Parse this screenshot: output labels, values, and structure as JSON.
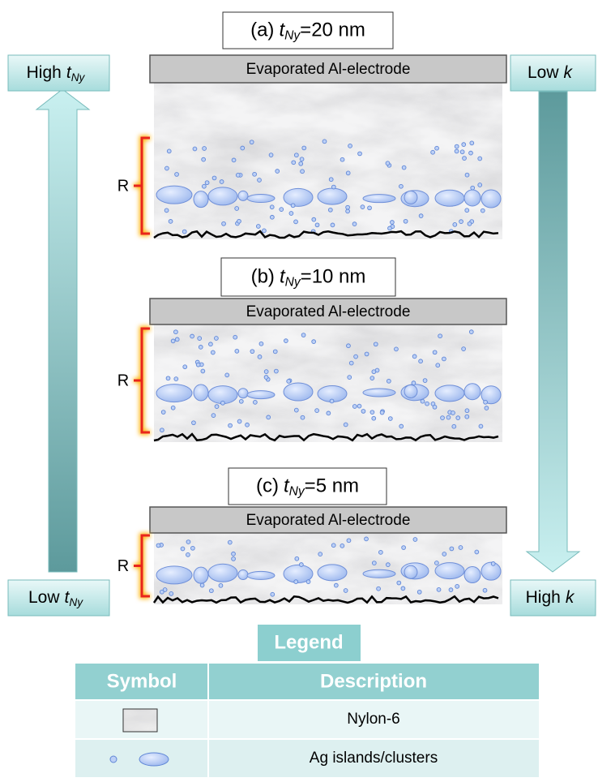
{
  "panels": [
    {
      "label": "(a)",
      "var": "t",
      "sub": "Ny",
      "rest": "=20 nm",
      "electrode": "Evaporated Al-electrode",
      "region": "R"
    },
    {
      "label": "(b)",
      "var": "t",
      "sub": "Ny",
      "rest": "=10 nm",
      "electrode": "Evaporated Al-electrode",
      "region": "R"
    },
    {
      "label": "(c)",
      "var": "t",
      "sub": "Ny",
      "rest": "=5 nm",
      "electrode": "Evaporated Al-electrode",
      "region": "R"
    }
  ],
  "left_arrow": {
    "top": {
      "word": "High",
      "var": "t",
      "sub": "Ny"
    },
    "bottom": {
      "word": "Low",
      "var": "t",
      "sub": "Ny"
    }
  },
  "right_arrow": {
    "top": {
      "word": "Low",
      "var": "k"
    },
    "bottom": {
      "word": "High",
      "var": "k"
    }
  },
  "legend": {
    "title": "Legend",
    "header": [
      "Symbol",
      "Description"
    ],
    "rows": [
      {
        "description": "Nylon-6"
      },
      {
        "description": "Ag islands/clusters"
      }
    ]
  }
}
